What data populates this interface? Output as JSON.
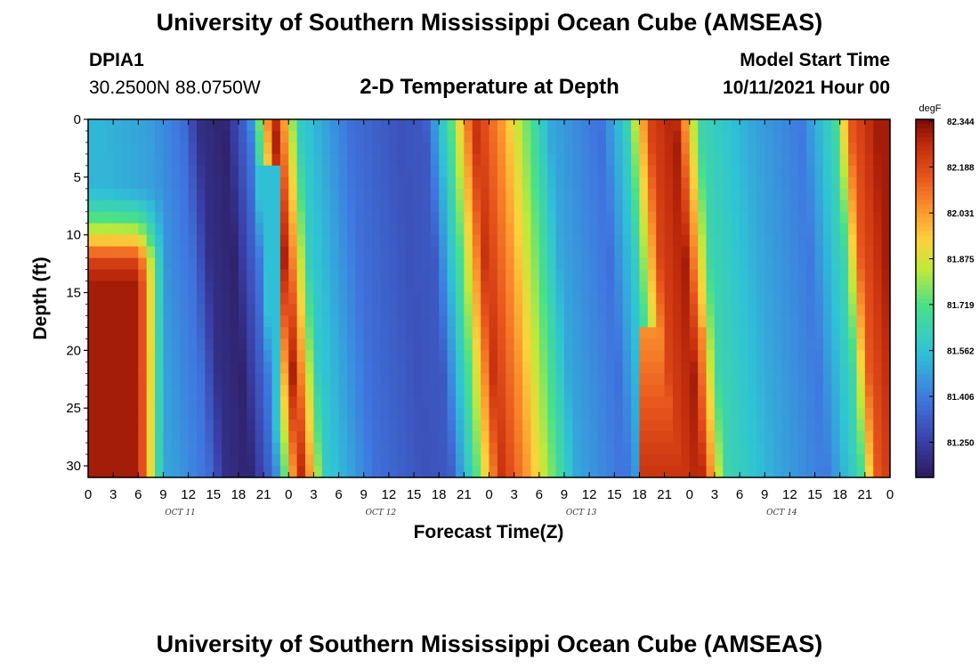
{
  "header": {
    "title": "University of Southern Mississippi Ocean Cube (AMSEAS)",
    "station_id": "DPIA1",
    "coordinates": "30.2500N  88.0750W",
    "plot_title": "2-D Temperature at Depth",
    "model_start_label": "Model Start Time",
    "model_start_value": "10/11/2021 Hour 00"
  },
  "footer": {
    "title": "University of Southern Mississippi Ocean Cube (AMSEAS)"
  },
  "chart_data": {
    "type": "heatmap",
    "xlabel": "Forecast Time(Z)",
    "ylabel": "Depth (ft)",
    "x_tick_labels": [
      "0",
      "3",
      "6",
      "9",
      "12",
      "15",
      "18",
      "21",
      "0",
      "3",
      "6",
      "9",
      "12",
      "15",
      "18",
      "21",
      "0",
      "3",
      "6",
      "9",
      "12",
      "15",
      "18",
      "21",
      "0",
      "3",
      "6",
      "9",
      "12",
      "15",
      "18",
      "21",
      "0"
    ],
    "day_labels": [
      "OCT 11",
      "OCT 12",
      "OCT 13",
      "OCT 14"
    ],
    "y_ticks": [
      0,
      5,
      10,
      15,
      20,
      25,
      30
    ],
    "ylim": [
      31,
      0
    ],
    "x_range_hours": [
      0,
      96
    ],
    "colorbar": {
      "unit": "degF",
      "labels": [
        "82.344",
        "82.188",
        "82.031",
        "81.875",
        "81.719",
        "81.562",
        "81.406",
        "81.250"
      ],
      "range": [
        81.13,
        82.35
      ]
    },
    "approx_surface_temperature_by_hour": {
      "hours": [
        0,
        6,
        10,
        12,
        15,
        18,
        21,
        24,
        30,
        36,
        39,
        42,
        45,
        48,
        54,
        60,
        63,
        66,
        69,
        72,
        78,
        84,
        88,
        90,
        93,
        96
      ],
      "values_degF": [
        81.53,
        81.48,
        81.38,
        81.2,
        81.16,
        81.4,
        82.3,
        81.6,
        81.38,
        81.3,
        81.32,
        81.7,
        82.25,
        82.05,
        81.5,
        81.38,
        81.6,
        82.2,
        82.3,
        81.65,
        81.5,
        81.4,
        81.65,
        82.15,
        82.3,
        82.3
      ]
    }
  }
}
